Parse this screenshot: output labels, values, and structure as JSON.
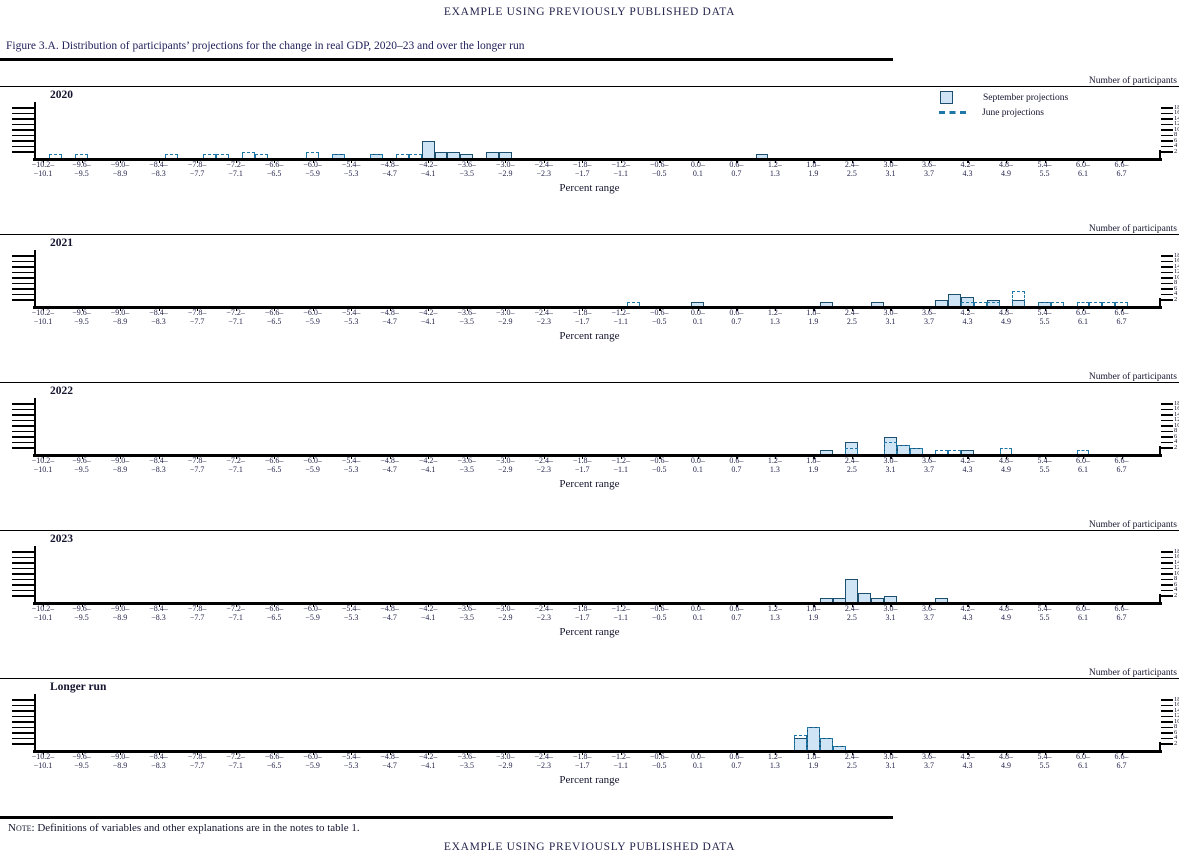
{
  "header": {
    "top": "EXAMPLE USING PREVIOUSLY PUBLISHED DATA"
  },
  "footer": {
    "bottom": "EXAMPLE USING PREVIOUSLY PUBLISHED DATA"
  },
  "figure": {
    "title": "Figure 3.A. Distribution of participants’ projections for the change in real GDP, 2020–23 and over the longer run"
  },
  "note": {
    "prefix": "Note:",
    "text": " Definitions of variables and other explanations are in the notes to table 1."
  },
  "legend": {
    "september": "September projections",
    "june": "June projections"
  },
  "axis": {
    "x_title": "Percent range",
    "y_title": "Number of participants",
    "y_ticks": [
      2,
      4,
      6,
      8,
      10,
      12,
      14,
      16,
      18
    ],
    "x_tick_start": -10.2,
    "x_tick_step": 0.6,
    "x_tick_count": 29,
    "bin_width": 0.2
  },
  "colors": {
    "bar_fill": "#cfe4f4",
    "bar_stroke": "#1d4f6e",
    "june_dash": "#1f77a8",
    "text_navy": "#22225c"
  },
  "chart_data": {
    "type": "bar",
    "subtype": "histogram-small-multiples",
    "x_label_values": [
      -10.2,
      -9.6,
      -9.0,
      -8.4,
      -7.8,
      -7.2,
      -6.6,
      -6.0,
      -5.4,
      -4.8,
      -4.2,
      -3.6,
      -3.0,
      -2.4,
      -1.8,
      -1.2,
      -0.6,
      0.0,
      0.6,
      1.2,
      1.8,
      2.4,
      3.0,
      3.6,
      4.2,
      4.8,
      5.4,
      6.0,
      6.6
    ],
    "ylim": [
      0,
      18
    ],
    "panels": [
      {
        "label": "2020",
        "september": [
          [
            -5.6,
            1
          ],
          [
            -5.0,
            1
          ],
          [
            -4.2,
            6
          ],
          [
            -4.0,
            2
          ],
          [
            -3.8,
            2
          ],
          [
            -3.6,
            1
          ],
          [
            -3.2,
            2
          ],
          [
            -3.0,
            2
          ],
          [
            1.0,
            1
          ]
        ],
        "june": [
          [
            -10.0,
            1
          ],
          [
            -9.6,
            1
          ],
          [
            -8.2,
            1
          ],
          [
            -7.6,
            1
          ],
          [
            -7.4,
            1
          ],
          [
            -7.0,
            2
          ],
          [
            -6.8,
            1
          ],
          [
            -6.0,
            2
          ],
          [
            -5.6,
            1
          ],
          [
            -5.0,
            1
          ],
          [
            -4.6,
            1
          ],
          [
            -4.4,
            1
          ]
        ]
      },
      {
        "label": "2021",
        "september": [
          [
            0.0,
            1
          ],
          [
            2.0,
            1
          ],
          [
            2.8,
            1
          ],
          [
            3.8,
            2
          ],
          [
            4.0,
            4
          ],
          [
            4.2,
            3
          ],
          [
            4.6,
            2
          ],
          [
            5.0,
            2
          ],
          [
            5.4,
            1
          ]
        ],
        "june": [
          [
            -1.0,
            1
          ],
          [
            4.2,
            1
          ],
          [
            4.4,
            1
          ],
          [
            4.6,
            1
          ],
          [
            5.0,
            5
          ],
          [
            5.4,
            1
          ],
          [
            5.6,
            1
          ],
          [
            6.0,
            1
          ],
          [
            6.2,
            1
          ],
          [
            6.4,
            1
          ],
          [
            6.6,
            1
          ]
        ]
      },
      {
        "label": "2022",
        "september": [
          [
            2.0,
            1
          ],
          [
            2.4,
            4
          ],
          [
            3.0,
            6
          ],
          [
            3.2,
            3
          ],
          [
            3.4,
            2
          ],
          [
            4.2,
            1
          ]
        ],
        "june": [
          [
            2.4,
            2
          ],
          [
            3.0,
            4
          ],
          [
            3.2,
            3
          ],
          [
            3.4,
            2
          ],
          [
            3.8,
            1
          ],
          [
            4.0,
            1
          ],
          [
            4.8,
            2
          ],
          [
            6.0,
            1
          ]
        ]
      },
      {
        "label": "2023",
        "september": [
          [
            2.0,
            1
          ],
          [
            2.2,
            1
          ],
          [
            2.4,
            8
          ],
          [
            2.6,
            3
          ],
          [
            2.8,
            1
          ],
          [
            3.0,
            2
          ],
          [
            3.8,
            1
          ]
        ],
        "june": []
      },
      {
        "label": "Longer run",
        "september": [
          [
            1.6,
            4
          ],
          [
            1.8,
            8
          ],
          [
            2.0,
            4
          ],
          [
            2.2,
            1
          ]
        ],
        "june": [
          [
            1.6,
            5
          ],
          [
            1.8,
            8
          ],
          [
            2.0,
            4
          ],
          [
            2.2,
            1
          ]
        ]
      }
    ]
  }
}
